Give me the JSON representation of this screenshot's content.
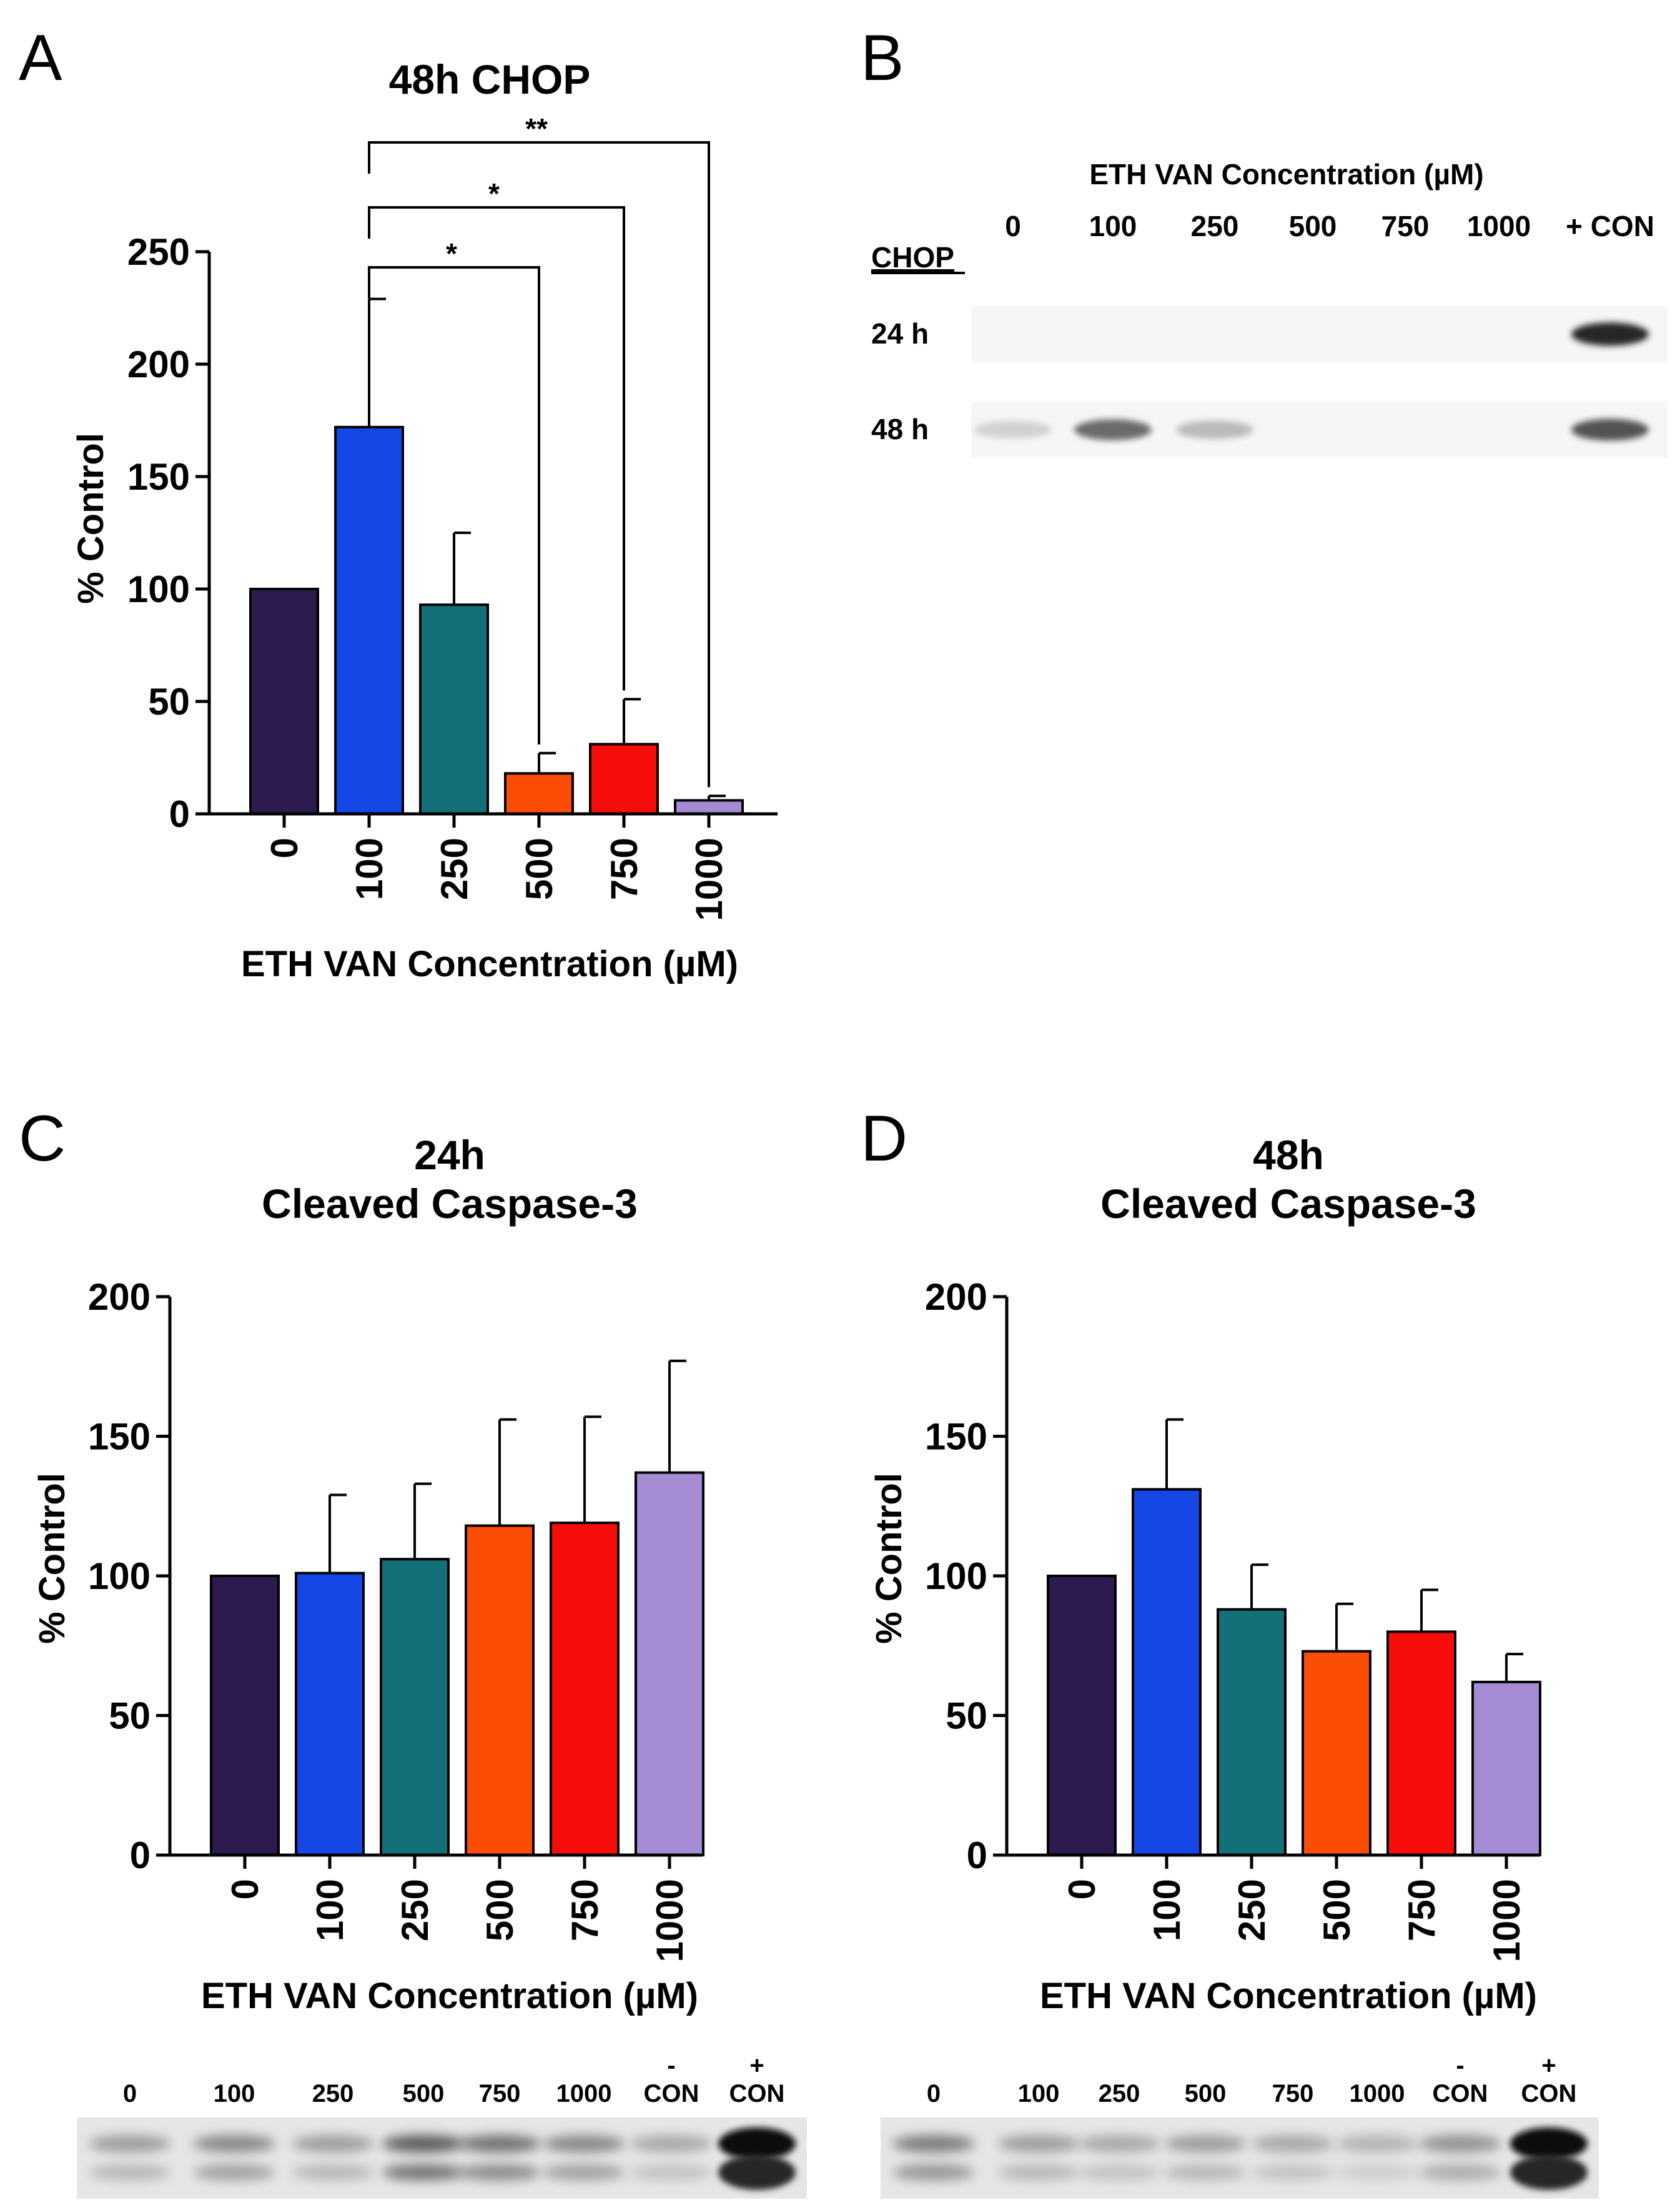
{
  "panels": {
    "A": {
      "letter": "A"
    },
    "B": {
      "letter": "B"
    },
    "C": {
      "letter": "C"
    },
    "D": {
      "letter": "D"
    }
  },
  "colors": [
    "#2d1a4e",
    "#1447e6",
    "#137078",
    "#fb4d06",
    "#f70c0c",
    "#a48bd4"
  ],
  "chart_data": [
    {
      "id": "A",
      "type": "bar",
      "title": "48h CHOP",
      "xlabel": "ETH VAN Concentration (µM)",
      "ylabel": "% Control",
      "categories": [
        "0",
        "100",
        "250",
        "500",
        "750",
        "1000"
      ],
      "values": [
        100,
        172,
        93,
        18,
        31,
        6
      ],
      "errors": [
        0,
        57,
        32,
        9,
        20,
        2
      ],
      "ylim": [
        0,
        250
      ],
      "yticks": [
        "0",
        "50",
        "100",
        "150",
        "200",
        "250"
      ],
      "significance": [
        {
          "from": "100",
          "to": "500",
          "label": "*"
        },
        {
          "from": "100",
          "to": "750",
          "label": "*"
        },
        {
          "from": "100",
          "to": "1000",
          "label": "**"
        }
      ]
    },
    {
      "id": "C",
      "type": "bar",
      "title": [
        "24h",
        "Cleaved Caspase-3"
      ],
      "xlabel": "ETH VAN Concentration (µM)",
      "ylabel": "% Control",
      "categories": [
        "0",
        "100",
        "250",
        "500",
        "750",
        "1000"
      ],
      "values": [
        100,
        101,
        106,
        118,
        119,
        137
      ],
      "errors": [
        0,
        28,
        27,
        38,
        38,
        40
      ],
      "ylim": [
        0,
        200
      ],
      "yticks": [
        "0",
        "50",
        "100",
        "150",
        "200"
      ]
    },
    {
      "id": "D",
      "type": "bar",
      "title": [
        "48h",
        "Cleaved Caspase-3"
      ],
      "xlabel": "ETH VAN Concentration (µM)",
      "ylabel": "% Control",
      "categories": [
        "0",
        "100",
        "250",
        "500",
        "750",
        "1000"
      ],
      "values": [
        100,
        131,
        88,
        73,
        80,
        62
      ],
      "errors": [
        0,
        25,
        16,
        17,
        15,
        10
      ],
      "ylim": [
        0,
        200
      ],
      "yticks": [
        "0",
        "50",
        "100",
        "150",
        "200"
      ]
    }
  ],
  "blots": {
    "B": {
      "title": "ETH VAN Concentration (µM)",
      "protein": "CHOP",
      "lanes": [
        "0",
        "100",
        "250",
        "500",
        "750",
        "1000",
        "+ CON"
      ],
      "rows": [
        {
          "label": "24 h",
          "intensity": [
            0,
            0,
            0,
            0,
            0,
            0,
            0.95
          ]
        },
        {
          "label": "48 h",
          "intensity": [
            0.2,
            0.65,
            0.3,
            0,
            0,
            0,
            0.75
          ]
        }
      ]
    },
    "C": {
      "lanes": [
        "0",
        "100",
        "250",
        "500",
        "750",
        "1000"
      ],
      "neg_con": [
        "-",
        "CON"
      ],
      "pos_con": [
        "+",
        "CON"
      ],
      "intensity": [
        0.35,
        0.45,
        0.35,
        0.65,
        0.55,
        0.45,
        0.3,
        1.0
      ]
    },
    "D": {
      "lanes": [
        "0",
        "100",
        "250",
        "500",
        "750",
        "1000"
      ],
      "neg_con": [
        "-",
        "CON"
      ],
      "pos_con": [
        "+",
        "CON"
      ],
      "intensity": [
        0.5,
        0.35,
        0.3,
        0.35,
        0.3,
        0.25,
        0.4,
        1.0
      ]
    }
  }
}
